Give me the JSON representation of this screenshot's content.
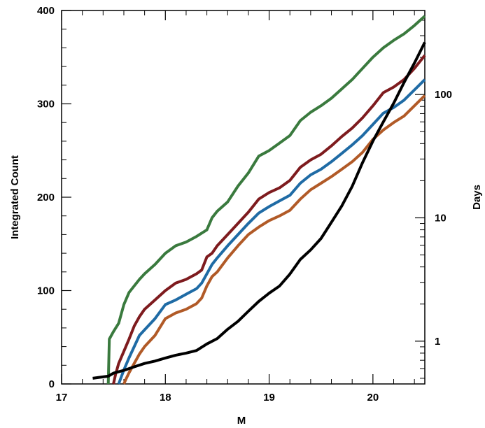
{
  "chart_data": {
    "type": "line",
    "title": "",
    "xlabel": "M",
    "ylabel": "Integrated Count",
    "y2label": "Days",
    "xlim": [
      17,
      20.5
    ],
    "ylim": [
      0,
      400
    ],
    "y2lim": [
      0.45,
      480
    ],
    "y2scale": "log",
    "grid": false,
    "legend": "none",
    "x_ticks": [
      17,
      18,
      19,
      20
    ],
    "y_ticks": [
      0,
      100,
      200,
      300,
      400
    ],
    "y2_ticks": [
      1,
      10,
      100
    ],
    "series": [
      {
        "color": "#3a7a3e",
        "axis": "left",
        "points": [
          [
            17.45,
            0
          ],
          [
            17.46,
            48
          ],
          [
            17.5,
            56
          ],
          [
            17.55,
            65
          ],
          [
            17.6,
            85
          ],
          [
            17.65,
            98
          ],
          [
            17.7,
            105
          ],
          [
            17.75,
            112
          ],
          [
            17.8,
            118
          ],
          [
            17.9,
            128
          ],
          [
            18.0,
            140
          ],
          [
            18.1,
            148
          ],
          [
            18.2,
            152
          ],
          [
            18.3,
            158
          ],
          [
            18.4,
            165
          ],
          [
            18.45,
            178
          ],
          [
            18.5,
            185
          ],
          [
            18.6,
            195
          ],
          [
            18.7,
            212
          ],
          [
            18.8,
            226
          ],
          [
            18.9,
            244
          ],
          [
            19.0,
            250
          ],
          [
            19.1,
            258
          ],
          [
            19.2,
            266
          ],
          [
            19.3,
            282
          ],
          [
            19.4,
            291
          ],
          [
            19.5,
            298
          ],
          [
            19.6,
            306
          ],
          [
            19.7,
            316
          ],
          [
            19.8,
            326
          ],
          [
            19.9,
            338
          ],
          [
            20.0,
            350
          ],
          [
            20.1,
            360
          ],
          [
            20.2,
            368
          ],
          [
            20.3,
            375
          ],
          [
            20.4,
            384
          ],
          [
            20.5,
            394
          ]
        ]
      },
      {
        "color": "#7e1b1e",
        "axis": "left",
        "points": [
          [
            17.5,
            0
          ],
          [
            17.52,
            10
          ],
          [
            17.55,
            22
          ],
          [
            17.6,
            35
          ],
          [
            17.65,
            48
          ],
          [
            17.7,
            62
          ],
          [
            17.75,
            72
          ],
          [
            17.8,
            80
          ],
          [
            17.9,
            90
          ],
          [
            18.0,
            100
          ],
          [
            18.1,
            108
          ],
          [
            18.2,
            112
          ],
          [
            18.3,
            118
          ],
          [
            18.35,
            122
          ],
          [
            18.4,
            136
          ],
          [
            18.45,
            140
          ],
          [
            18.5,
            148
          ],
          [
            18.6,
            160
          ],
          [
            18.7,
            172
          ],
          [
            18.8,
            184
          ],
          [
            18.9,
            198
          ],
          [
            19.0,
            205
          ],
          [
            19.1,
            210
          ],
          [
            19.2,
            218
          ],
          [
            19.3,
            232
          ],
          [
            19.4,
            240
          ],
          [
            19.5,
            246
          ],
          [
            19.6,
            255
          ],
          [
            19.7,
            265
          ],
          [
            19.8,
            274
          ],
          [
            19.9,
            285
          ],
          [
            20.0,
            298
          ],
          [
            20.1,
            312
          ],
          [
            20.2,
            318
          ],
          [
            20.3,
            326
          ],
          [
            20.4,
            338
          ],
          [
            20.5,
            352
          ]
        ]
      },
      {
        "color": "#1f6ba5",
        "axis": "left",
        "points": [
          [
            17.55,
            0
          ],
          [
            17.57,
            6
          ],
          [
            17.6,
            15
          ],
          [
            17.65,
            28
          ],
          [
            17.7,
            40
          ],
          [
            17.75,
            52
          ],
          [
            17.8,
            58
          ],
          [
            17.9,
            70
          ],
          [
            18.0,
            85
          ],
          [
            18.1,
            90
          ],
          [
            18.2,
            96
          ],
          [
            18.3,
            102
          ],
          [
            18.35,
            108
          ],
          [
            18.4,
            118
          ],
          [
            18.45,
            128
          ],
          [
            18.5,
            135
          ],
          [
            18.6,
            148
          ],
          [
            18.7,
            160
          ],
          [
            18.8,
            172
          ],
          [
            18.9,
            183
          ],
          [
            19.0,
            190
          ],
          [
            19.1,
            196
          ],
          [
            19.2,
            202
          ],
          [
            19.3,
            215
          ],
          [
            19.4,
            224
          ],
          [
            19.5,
            230
          ],
          [
            19.6,
            238
          ],
          [
            19.7,
            247
          ],
          [
            19.8,
            256
          ],
          [
            19.9,
            266
          ],
          [
            20.0,
            278
          ],
          [
            20.1,
            290
          ],
          [
            20.2,
            296
          ],
          [
            20.3,
            304
          ],
          [
            20.4,
            315
          ],
          [
            20.5,
            326
          ]
        ]
      },
      {
        "color": "#b15a27",
        "axis": "left",
        "points": [
          [
            17.6,
            0
          ],
          [
            17.62,
            5
          ],
          [
            17.65,
            12
          ],
          [
            17.7,
            22
          ],
          [
            17.75,
            32
          ],
          [
            17.8,
            40
          ],
          [
            17.9,
            52
          ],
          [
            18.0,
            70
          ],
          [
            18.1,
            76
          ],
          [
            18.2,
            80
          ],
          [
            18.3,
            86
          ],
          [
            18.35,
            92
          ],
          [
            18.4,
            105
          ],
          [
            18.45,
            115
          ],
          [
            18.5,
            120
          ],
          [
            18.6,
            135
          ],
          [
            18.7,
            148
          ],
          [
            18.8,
            160
          ],
          [
            18.9,
            168
          ],
          [
            19.0,
            175
          ],
          [
            19.1,
            180
          ],
          [
            19.2,
            186
          ],
          [
            19.3,
            198
          ],
          [
            19.4,
            208
          ],
          [
            19.5,
            215
          ],
          [
            19.6,
            222
          ],
          [
            19.7,
            230
          ],
          [
            19.8,
            238
          ],
          [
            19.9,
            248
          ],
          [
            20.0,
            262
          ],
          [
            20.1,
            272
          ],
          [
            20.2,
            280
          ],
          [
            20.3,
            287
          ],
          [
            20.4,
            298
          ],
          [
            20.5,
            309
          ]
        ]
      },
      {
        "color": "#000000",
        "axis": "right",
        "points": [
          [
            17.3,
            0.5
          ],
          [
            17.45,
            0.52
          ],
          [
            17.5,
            0.55
          ],
          [
            17.6,
            0.58
          ],
          [
            17.7,
            0.62
          ],
          [
            17.8,
            0.66
          ],
          [
            17.9,
            0.69
          ],
          [
            18.0,
            0.73
          ],
          [
            18.1,
            0.77
          ],
          [
            18.2,
            0.8
          ],
          [
            18.3,
            0.84
          ],
          [
            18.4,
            0.95
          ],
          [
            18.5,
            1.05
          ],
          [
            18.6,
            1.25
          ],
          [
            18.7,
            1.45
          ],
          [
            18.8,
            1.75
          ],
          [
            18.9,
            2.1
          ],
          [
            19.0,
            2.45
          ],
          [
            19.1,
            2.8
          ],
          [
            19.2,
            3.5
          ],
          [
            19.3,
            4.6
          ],
          [
            19.4,
            5.5
          ],
          [
            19.5,
            6.8
          ],
          [
            19.6,
            9.2
          ],
          [
            19.7,
            12.5
          ],
          [
            19.8,
            18
          ],
          [
            19.9,
            28
          ],
          [
            20.0,
            42
          ],
          [
            20.1,
            60
          ],
          [
            20.2,
            85
          ],
          [
            20.3,
            125
          ],
          [
            20.4,
            180
          ],
          [
            20.5,
            265
          ]
        ]
      }
    ]
  }
}
